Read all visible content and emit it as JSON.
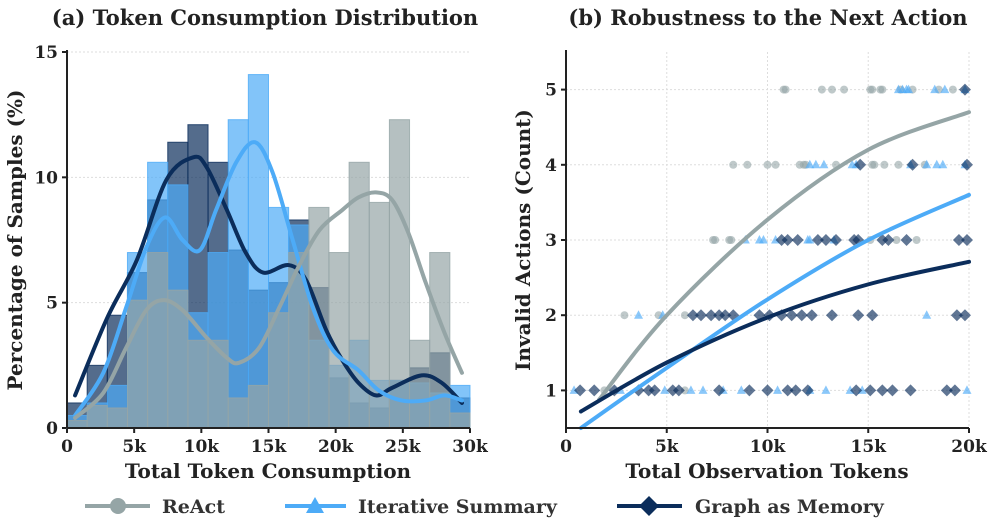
{
  "chart_data": [
    {
      "type": "bar",
      "title": "(a) Token Consumption Distribution",
      "xlabel": "Total Token Consumption",
      "ylabel": "Percentage of Samples (%)",
      "xlim": [
        0,
        30000
      ],
      "ylim": [
        0,
        15
      ],
      "xticks": [
        0,
        5000,
        10000,
        15000,
        20000,
        25000,
        30000
      ],
      "xtick_labels": [
        "0",
        "5k",
        "10k",
        "15k",
        "20k",
        "25k",
        "30k"
      ],
      "yticks": [
        0,
        5,
        10,
        15
      ],
      "ytick_labels": [
        "0",
        "5",
        "10",
        "15"
      ],
      "grid": "horizontal dotted",
      "bin_width": 1500,
      "series": [
        {
          "name": "Graph as Memory",
          "color": "#0b2d5b",
          "values": [
            1.0,
            2.5,
            4.5,
            6.2,
            9.1,
            11.4,
            12.1,
            10.6,
            7.1,
            5.5,
            5.8,
            8.3,
            5.6,
            2.0,
            1.0,
            0.8,
            1.9,
            2.4,
            3.0,
            1.2
          ],
          "kde": [
            [
              600,
              1.3
            ],
            [
              3000,
              4.4
            ],
            [
              5200,
              6.7
            ],
            [
              7400,
              9.9
            ],
            [
              9400,
              10.8
            ],
            [
              10400,
              10.4
            ],
            [
              11900,
              8.7
            ],
            [
              13300,
              7.0
            ],
            [
              14600,
              6.2
            ],
            [
              16500,
              6.5
            ],
            [
              17800,
              5.9
            ],
            [
              19300,
              3.9
            ],
            [
              20500,
              2.7
            ],
            [
              21700,
              1.8
            ],
            [
              23000,
              1.3
            ],
            [
              24200,
              1.6
            ],
            [
              26400,
              2.1
            ],
            [
              27900,
              1.8
            ],
            [
              29400,
              1.0
            ]
          ]
        },
        {
          "name": "Iterative Summary",
          "color": "#4dabf7",
          "values": [
            0.5,
            1.0,
            1.7,
            7.0,
            10.6,
            9.7,
            4.6,
            7.0,
            12.3,
            14.1,
            8.8,
            8.1,
            3.5,
            2.5,
            3.5,
            1.9,
            1.9,
            1.8,
            1.4,
            1.7
          ],
          "kde": [
            [
              600,
              0.5
            ],
            [
              2700,
              2.2
            ],
            [
              4400,
              4.8
            ],
            [
              5900,
              7.2
            ],
            [
              7300,
              8.4
            ],
            [
              8600,
              7.5
            ],
            [
              9900,
              7.1
            ],
            [
              11100,
              8.7
            ],
            [
              12600,
              10.6
            ],
            [
              14000,
              11.4
            ],
            [
              15300,
              10.2
            ],
            [
              16800,
              7.5
            ],
            [
              18300,
              4.8
            ],
            [
              19800,
              3.1
            ],
            [
              21700,
              2.3
            ],
            [
              23200,
              1.5
            ],
            [
              24900,
              1.1
            ],
            [
              26700,
              1.1
            ],
            [
              28100,
              1.3
            ],
            [
              29400,
              1.1
            ]
          ]
        },
        {
          "name": "ReAct",
          "color": "#95a5a6",
          "values": [
            0.3,
            0.9,
            0.8,
            5.1,
            7.0,
            5.5,
            3.5,
            3.5,
            1.2,
            1.7,
            4.6,
            7.0,
            8.8,
            7.0,
            10.6,
            9.0,
            12.3,
            3.5,
            7.0,
            0.6
          ],
          "kde": [
            [
              600,
              0.4
            ],
            [
              2700,
              1.4
            ],
            [
              4400,
              3.2
            ],
            [
              5900,
              4.7
            ],
            [
              7200,
              5.1
            ],
            [
              8600,
              4.7
            ],
            [
              10400,
              3.6
            ],
            [
              11900,
              2.8
            ],
            [
              12800,
              2.6
            ],
            [
              14300,
              3.2
            ],
            [
              15800,
              4.8
            ],
            [
              17300,
              6.5
            ],
            [
              18800,
              7.9
            ],
            [
              20500,
              8.7
            ],
            [
              21700,
              9.2
            ],
            [
              23000,
              9.4
            ],
            [
              24200,
              9.1
            ],
            [
              25400,
              7.8
            ],
            [
              26700,
              5.8
            ],
            [
              28100,
              3.8
            ],
            [
              29400,
              2.2
            ]
          ]
        }
      ]
    },
    {
      "type": "scatter",
      "title": "(b) Robustness to the Next Action",
      "xlabel": "Total Observation Tokens",
      "ylabel": "Invalid Actions (Count)",
      "xlim": [
        0,
        20000
      ],
      "ylim": [
        0.5,
        5.5
      ],
      "xticks": [
        0,
        5000,
        10000,
        15000,
        20000
      ],
      "xtick_labels": [
        "0",
        "5k",
        "10k",
        "15k",
        "20k"
      ],
      "yticks": [
        1,
        2,
        3,
        4,
        5
      ],
      "ytick_labels": [
        "1",
        "2",
        "3",
        "4",
        "5"
      ],
      "grid": "both dotted",
      "series": [
        {
          "name": "ReAct",
          "color": "#95a5a6",
          "marker": "circle",
          "points": [
            [
              10800,
              5
            ],
            [
              10900,
              5
            ],
            [
              12700,
              5
            ],
            [
              13200,
              5
            ],
            [
              13800,
              5
            ],
            [
              15100,
              5
            ],
            [
              15200,
              5
            ],
            [
              15600,
              5
            ],
            [
              15700,
              5
            ],
            [
              16600,
              5
            ],
            [
              17200,
              5
            ],
            [
              18500,
              5
            ],
            [
              19200,
              5
            ],
            [
              8300,
              4
            ],
            [
              9000,
              4
            ],
            [
              10000,
              4
            ],
            [
              10400,
              4
            ],
            [
              11600,
              4
            ],
            [
              11800,
              4
            ],
            [
              11900,
              4
            ],
            [
              13400,
              4
            ],
            [
              15200,
              4
            ],
            [
              15300,
              4
            ],
            [
              15800,
              4
            ],
            [
              16500,
              4
            ],
            [
              17800,
              4
            ],
            [
              7300,
              3
            ],
            [
              7400,
              3
            ],
            [
              8100,
              3
            ],
            [
              8200,
              3
            ],
            [
              15100,
              3
            ],
            [
              16400,
              3
            ],
            [
              17400,
              3
            ],
            [
              2900,
              2
            ],
            [
              4600,
              2
            ],
            [
              5900,
              2
            ],
            [
              1900,
              1
            ],
            [
              5900,
              1
            ]
          ],
          "fit": [
            [
              1650,
              0.88
            ],
            [
              5000,
              2.0
            ],
            [
              10000,
              3.27
            ],
            [
              15000,
              4.2
            ],
            [
              20000,
              4.7
            ]
          ]
        },
        {
          "name": "Iterative Summary",
          "color": "#4dabf7",
          "marker": "triangle",
          "points": [
            [
              16500,
              5
            ],
            [
              16700,
              5
            ],
            [
              16900,
              5
            ],
            [
              17000,
              5
            ],
            [
              18300,
              5
            ],
            [
              18800,
              5
            ],
            [
              19800,
              5
            ],
            [
              12100,
              4
            ],
            [
              12400,
              4
            ],
            [
              12800,
              4
            ],
            [
              14200,
              4
            ],
            [
              14400,
              4
            ],
            [
              17100,
              4
            ],
            [
              17900,
              4
            ],
            [
              18400,
              4
            ],
            [
              18700,
              4
            ],
            [
              19800,
              4
            ],
            [
              8900,
              3
            ],
            [
              9600,
              3
            ],
            [
              9800,
              3
            ],
            [
              10400,
              3
            ],
            [
              12000,
              3
            ],
            [
              12100,
              3
            ],
            [
              13300,
              3
            ],
            [
              3600,
              2
            ],
            [
              4800,
              2
            ],
            [
              17900,
              2
            ],
            [
              400,
              1
            ],
            [
              2700,
              1
            ],
            [
              4900,
              1
            ],
            [
              6200,
              1
            ],
            [
              6800,
              1
            ],
            [
              7800,
              1
            ],
            [
              8700,
              1
            ],
            [
              10500,
              1
            ],
            [
              12100,
              1
            ],
            [
              12900,
              1
            ],
            [
              14100,
              1
            ],
            [
              14700,
              1
            ],
            [
              19900,
              1
            ]
          ],
          "fit": [
            [
              740,
              0.5
            ],
            [
              5000,
              1.3
            ],
            [
              10000,
              2.21
            ],
            [
              15000,
              3.0
            ],
            [
              20000,
              3.6
            ]
          ]
        },
        {
          "name": "Graph as Memory",
          "color": "#0b2d5b",
          "marker": "diamond",
          "points": [
            [
              19800,
              5
            ],
            [
              14600,
              4
            ],
            [
              17200,
              4
            ],
            [
              19900,
              4
            ],
            [
              10700,
              3
            ],
            [
              11000,
              3
            ],
            [
              11500,
              3
            ],
            [
              12500,
              3
            ],
            [
              12900,
              3
            ],
            [
              13400,
              3
            ],
            [
              14300,
              3
            ],
            [
              14500,
              3
            ],
            [
              15700,
              3
            ],
            [
              16000,
              3
            ],
            [
              16900,
              3
            ],
            [
              19500,
              3
            ],
            [
              19900,
              3
            ],
            [
              6300,
              2
            ],
            [
              6700,
              2
            ],
            [
              7200,
              2
            ],
            [
              7600,
              2
            ],
            [
              7900,
              2
            ],
            [
              8300,
              2
            ],
            [
              9600,
              2
            ],
            [
              10100,
              2
            ],
            [
              10700,
              2
            ],
            [
              11200,
              2
            ],
            [
              11700,
              2
            ],
            [
              12200,
              2
            ],
            [
              13200,
              2
            ],
            [
              14500,
              2
            ],
            [
              15200,
              2
            ],
            [
              19400,
              2
            ],
            [
              19800,
              2
            ],
            [
              700,
              1
            ],
            [
              1400,
              1
            ],
            [
              2400,
              1
            ],
            [
              3600,
              1
            ],
            [
              4100,
              1
            ],
            [
              4400,
              1
            ],
            [
              5300,
              1
            ],
            [
              5600,
              1
            ],
            [
              7600,
              1
            ],
            [
              9100,
              1
            ],
            [
              10000,
              1
            ],
            [
              11000,
              1
            ],
            [
              11400,
              1
            ],
            [
              12000,
              1
            ],
            [
              14400,
              1
            ],
            [
              15100,
              1
            ],
            [
              15700,
              1
            ],
            [
              16200,
              1
            ],
            [
              17100,
              1
            ],
            [
              18900,
              1
            ],
            [
              19300,
              1
            ]
          ],
          "fit": [
            [
              740,
              0.72
            ],
            [
              5000,
              1.37
            ],
            [
              10000,
              1.97
            ],
            [
              15000,
              2.41
            ],
            [
              20000,
              2.71
            ]
          ]
        }
      ]
    }
  ],
  "legend": {
    "placement": "bottom",
    "items": [
      {
        "label": "ReAct",
        "color": "#95a5a6",
        "marker": "circle"
      },
      {
        "label": "Iterative Summary",
        "color": "#4dabf7",
        "marker": "triangle"
      },
      {
        "label": "Graph as Memory",
        "color": "#0b2d5b",
        "marker": "diamond"
      }
    ]
  }
}
